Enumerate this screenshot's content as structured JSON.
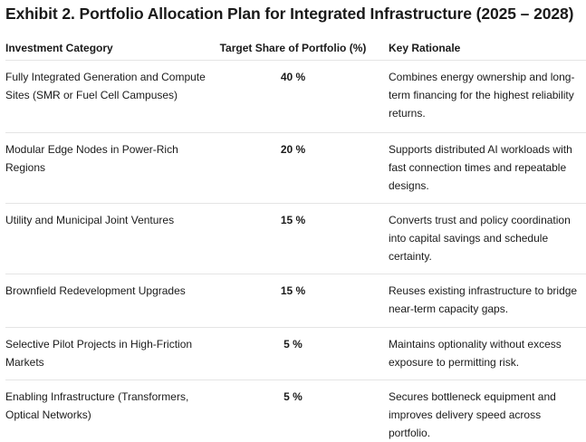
{
  "title": "Exhibit 2. Portfolio Allocation Plan for Integrated Infrastructure (2025 – 2028)",
  "headers": {
    "category": "Investment Category",
    "share": "Target Share of Portfolio (%)",
    "rationale": "Key Rationale"
  },
  "rows": [
    {
      "category": "Fully Integrated Generation and Compute Sites (SMR or Fuel Cell Campuses)",
      "share": "40 %",
      "rationale": "Combines energy ownership and long-term financing for the highest reliability returns."
    },
    {
      "category": "Modular Edge Nodes in Power-Rich Regions",
      "share": "20 %",
      "rationale": "Supports distributed AI workloads with fast connection times and repeatable designs."
    },
    {
      "category": "Utility and Municipal Joint Ventures",
      "share": "15 %",
      "rationale": "Converts trust and policy coordination into capital savings and schedule certainty."
    },
    {
      "category": "Brownfield Redevelopment Upgrades",
      "share": "15 %",
      "rationale": "Reuses existing infrastructure to bridge near-term capacity gaps."
    },
    {
      "category": "Selective Pilot Projects in High-Friction Markets",
      "share": "5 %",
      "rationale": "Maintains optionality without excess exposure to permitting risk."
    },
    {
      "category": "Enabling Infrastructure (Transformers, Optical Networks)",
      "share": "5 %",
      "rationale": "Secures bottleneck equipment and improves delivery speed across portfolio."
    }
  ]
}
